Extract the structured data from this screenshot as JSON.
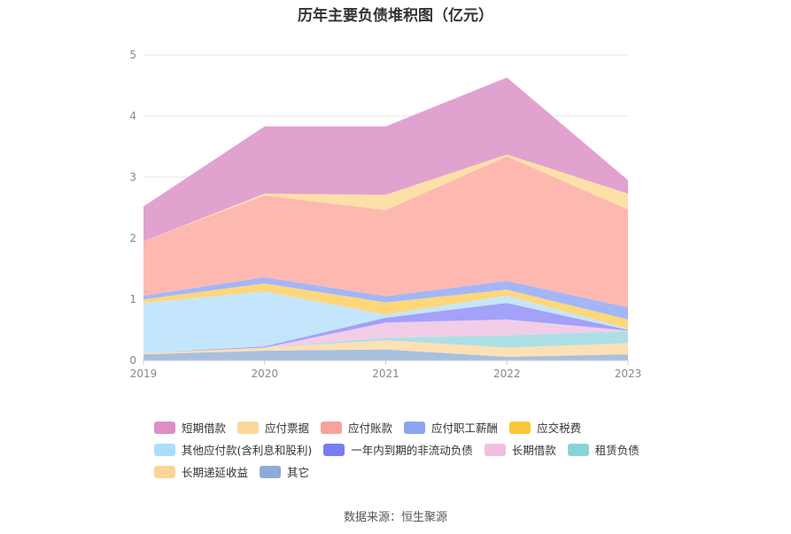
{
  "chart_data": {
    "type": "area",
    "title": "历年主要负债堆积图（亿元）",
    "categories": [
      "2019",
      "2020",
      "2021",
      "2022",
      "2023"
    ],
    "ylim": [
      0,
      5
    ],
    "yticks": [
      "0",
      "1",
      "2",
      "3",
      "4",
      "5"
    ],
    "grid": true,
    "legend_position": "bottom",
    "series": [
      {
        "name": "短期借款",
        "color": "#e1a2d0",
        "values": [
          0.57,
          1.1,
          1.12,
          1.26,
          0.22
        ]
      },
      {
        "name": "应付票据",
        "color": "#fde0a8",
        "values": [
          0.0,
          0.03,
          0.25,
          0.03,
          0.26
        ]
      },
      {
        "name": "应付账款",
        "color": "#fdb9b0",
        "values": [
          0.89,
          1.34,
          1.41,
          2.04,
          1.6
        ]
      },
      {
        "name": "应付职工薪酬",
        "color": "#a3b6f8",
        "values": [
          0.06,
          0.1,
          0.1,
          0.14,
          0.2
        ]
      },
      {
        "name": "应交税费",
        "color": "#fdd77b",
        "values": [
          0.06,
          0.13,
          0.2,
          0.1,
          0.15
        ]
      },
      {
        "name": "其他应付款(含利息和股利)",
        "color": "#c4e6fc",
        "values": [
          0.82,
          0.9,
          0.05,
          0.12,
          0.02
        ]
      },
      {
        "name": "一年内到期的非流动负债",
        "color": "#a3a1f8",
        "values": [
          0.0,
          0.02,
          0.08,
          0.27,
          0.01
        ]
      },
      {
        "name": "长期借款",
        "color": "#f1cde8",
        "values": [
          0.0,
          0.0,
          0.25,
          0.26,
          0.01
        ]
      },
      {
        "name": "租赁负债",
        "color": "#addfe6",
        "values": [
          0.0,
          0.0,
          0.04,
          0.2,
          0.2
        ]
      },
      {
        "name": "长期递延收益",
        "color": "#fde0b4",
        "values": [
          0.02,
          0.05,
          0.15,
          0.15,
          0.18
        ]
      },
      {
        "name": "其它",
        "color": "#a8bfe0",
        "values": [
          0.1,
          0.16,
          0.18,
          0.06,
          0.1
        ]
      }
    ],
    "legend_colors": [
      "#dd8ec7",
      "#fdd79b",
      "#f7a29a",
      "#8ca5f3",
      "#fcc63a",
      "#a9defc",
      "#7b7cf0",
      "#f0bfe0",
      "#86d4d8",
      "#fdd497",
      "#8eaad9"
    ]
  },
  "source_text": "数据来源：恒生聚源"
}
